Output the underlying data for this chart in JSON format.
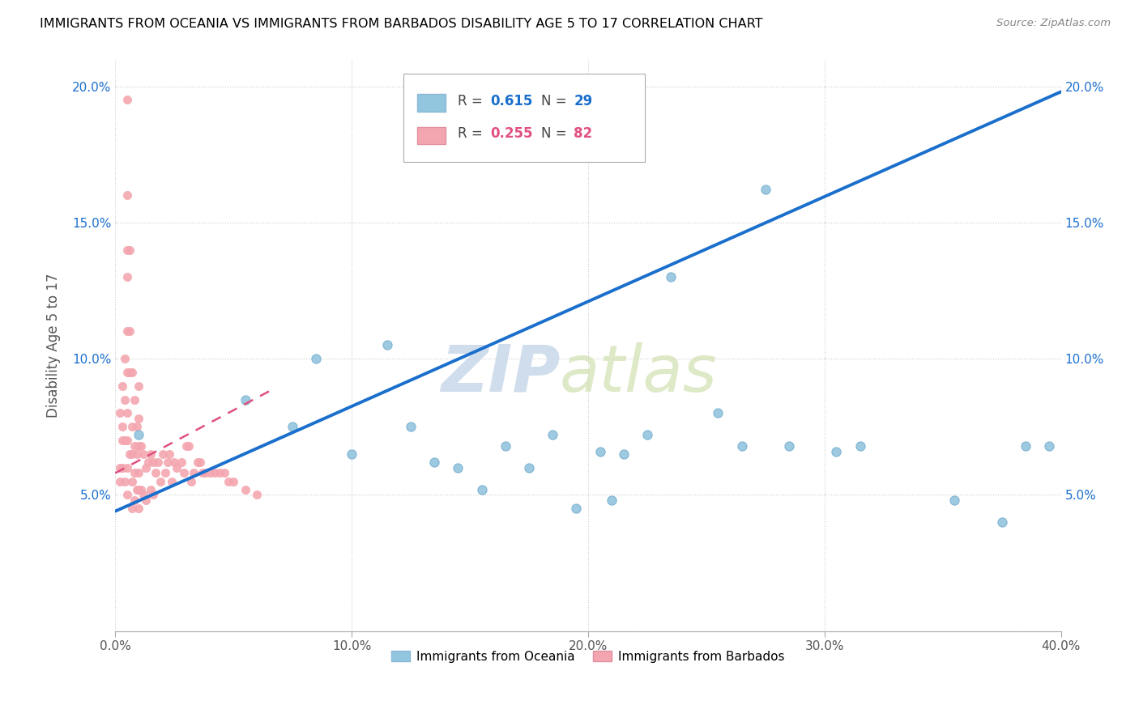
{
  "title": "IMMIGRANTS FROM OCEANIA VS IMMIGRANTS FROM BARBADOS DISABILITY AGE 5 TO 17 CORRELATION CHART",
  "source": "Source: ZipAtlas.com",
  "ylabel": "Disability Age 5 to 17",
  "xlim": [
    0.0,
    0.4
  ],
  "ylim": [
    0.0,
    0.21
  ],
  "xticks": [
    0.0,
    0.1,
    0.2,
    0.3,
    0.4
  ],
  "xticklabels": [
    "0.0%",
    "10.0%",
    "20.0%",
    "30.0%",
    "40.0%"
  ],
  "yticks": [
    0.0,
    0.05,
    0.1,
    0.15,
    0.2
  ],
  "yticklabels": [
    "",
    "5.0%",
    "10.0%",
    "15.0%",
    "20.0%"
  ],
  "oceania_color": "#92c5de",
  "barbados_color": "#f4a6b0",
  "trendline1_color": "#1a6fcc",
  "trendline2_color": "#e05080",
  "watermark_zip": "ZIP",
  "watermark_atlas": "atlas",
  "oceania_scatter_x": [
    0.01,
    0.055,
    0.075,
    0.085,
    0.1,
    0.115,
    0.125,
    0.135,
    0.145,
    0.155,
    0.165,
    0.175,
    0.185,
    0.195,
    0.205,
    0.21,
    0.215,
    0.225,
    0.235,
    0.255,
    0.265,
    0.275,
    0.285,
    0.305,
    0.315,
    0.355,
    0.375,
    0.385,
    0.395
  ],
  "oceania_scatter_y": [
    0.072,
    0.085,
    0.075,
    0.1,
    0.065,
    0.105,
    0.075,
    0.062,
    0.06,
    0.052,
    0.068,
    0.06,
    0.072,
    0.045,
    0.066,
    0.048,
    0.065,
    0.072,
    0.13,
    0.08,
    0.068,
    0.162,
    0.068,
    0.066,
    0.068,
    0.048,
    0.04,
    0.068,
    0.068
  ],
  "barbados_scatter_x": [
    0.002,
    0.002,
    0.002,
    0.003,
    0.003,
    0.003,
    0.003,
    0.004,
    0.004,
    0.004,
    0.004,
    0.005,
    0.005,
    0.005,
    0.005,
    0.005,
    0.005,
    0.005,
    0.005,
    0.005,
    0.005,
    0.006,
    0.006,
    0.006,
    0.006,
    0.007,
    0.007,
    0.007,
    0.007,
    0.007,
    0.008,
    0.008,
    0.008,
    0.008,
    0.009,
    0.009,
    0.009,
    0.01,
    0.01,
    0.01,
    0.01,
    0.01,
    0.01,
    0.011,
    0.011,
    0.012,
    0.012,
    0.013,
    0.013,
    0.014,
    0.015,
    0.015,
    0.016,
    0.016,
    0.017,
    0.018,
    0.019,
    0.02,
    0.021,
    0.022,
    0.023,
    0.024,
    0.025,
    0.026,
    0.028,
    0.029,
    0.03,
    0.031,
    0.032,
    0.033,
    0.035,
    0.036,
    0.037,
    0.038,
    0.04,
    0.042,
    0.044,
    0.046,
    0.048,
    0.05,
    0.055,
    0.06
  ],
  "barbados_scatter_y": [
    0.08,
    0.06,
    0.055,
    0.09,
    0.075,
    0.07,
    0.06,
    0.1,
    0.085,
    0.07,
    0.055,
    0.195,
    0.16,
    0.14,
    0.13,
    0.11,
    0.095,
    0.08,
    0.07,
    0.06,
    0.05,
    0.14,
    0.11,
    0.095,
    0.065,
    0.095,
    0.075,
    0.065,
    0.055,
    0.045,
    0.085,
    0.068,
    0.058,
    0.048,
    0.075,
    0.065,
    0.052,
    0.09,
    0.078,
    0.068,
    0.058,
    0.052,
    0.045,
    0.068,
    0.052,
    0.065,
    0.05,
    0.06,
    0.048,
    0.062,
    0.065,
    0.052,
    0.062,
    0.05,
    0.058,
    0.062,
    0.055,
    0.065,
    0.058,
    0.062,
    0.065,
    0.055,
    0.062,
    0.06,
    0.062,
    0.058,
    0.068,
    0.068,
    0.055,
    0.058,
    0.062,
    0.062,
    0.058,
    0.058,
    0.058,
    0.058,
    0.058,
    0.058,
    0.055,
    0.055,
    0.052,
    0.05
  ],
  "trendline1_x0": 0.0,
  "trendline1_x1": 0.4,
  "trendline1_y0": 0.044,
  "trendline1_y1": 0.198,
  "trendline2_x0": 0.0,
  "trendline2_x1": 0.065,
  "trendline2_y0": 0.058,
  "trendline2_y1": 0.088
}
